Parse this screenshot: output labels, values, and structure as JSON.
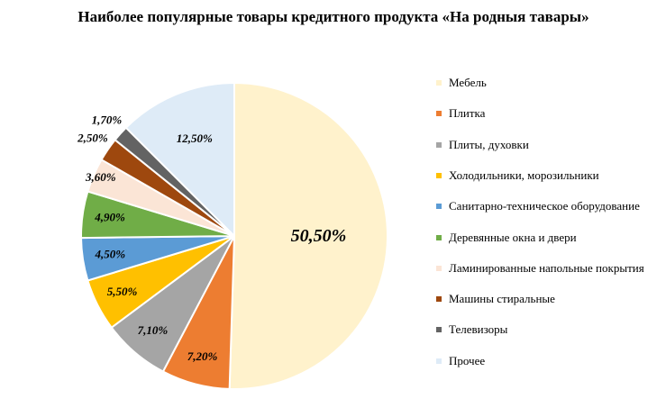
{
  "chart_data": {
    "type": "pie",
    "title": "Наиболее популярные товары кредитного продукта «На родныя тавары»",
    "categories": [
      "Мебель",
      "Плитка",
      "Плиты, духовки",
      "Холодильники, морозильники",
      "Санитарно-техническое оборудование",
      "Деревянные окна и двери",
      "Ламинированные напольные покрытия",
      "Машины стиральные",
      "Телевизоры",
      "Прочее"
    ],
    "values": [
      50.5,
      7.2,
      7.1,
      5.5,
      4.5,
      4.9,
      3.6,
      2.5,
      1.7,
      12.5
    ],
    "value_labels": [
      "50,50%",
      "7,20%",
      "7,10%",
      "5,50%",
      "4,50%",
      "4,90%",
      "3,60%",
      "2,50%",
      "1,70%",
      "12,50%"
    ],
    "colors": [
      "#fff2cc",
      "#ed7d31",
      "#a5a5a5",
      "#ffc000",
      "#5b9bd5",
      "#70ad47",
      "#fbe5d6",
      "#9e480e",
      "#636363",
      "#deebf7"
    ],
    "legend": "right"
  }
}
